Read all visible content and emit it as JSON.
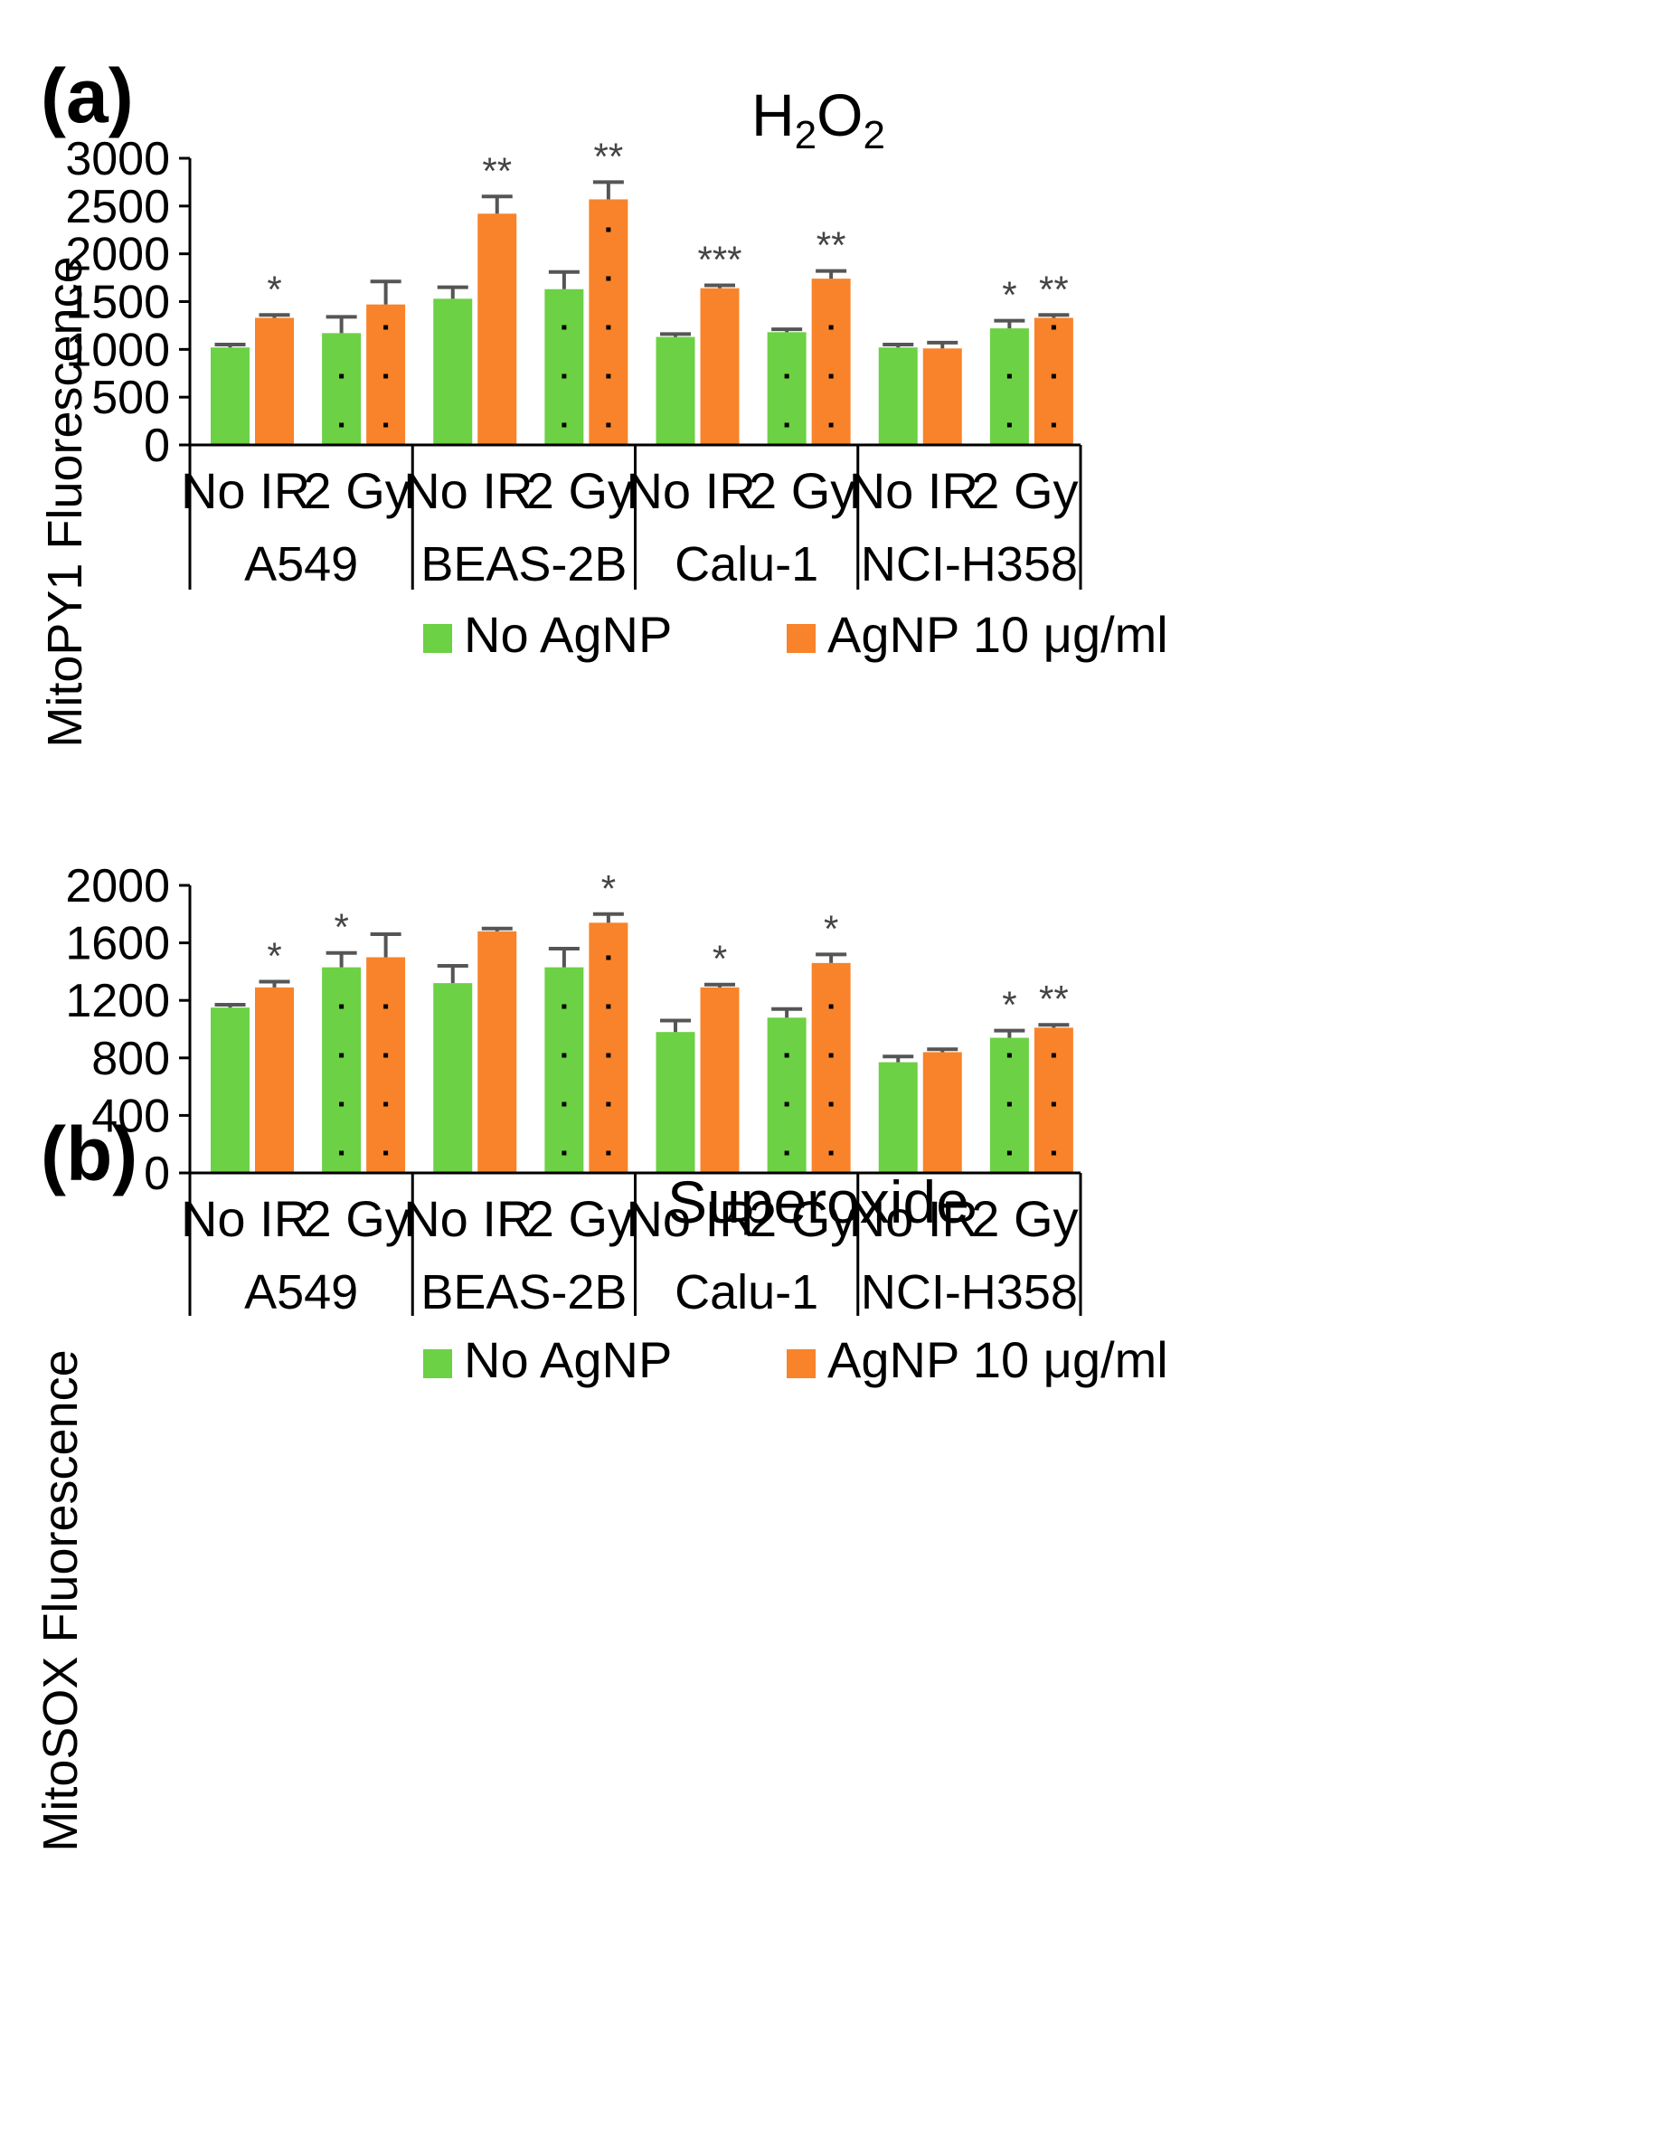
{
  "colors": {
    "no_agnp": "#6cd144",
    "agnp": "#f8832a",
    "error_bar": "#555555",
    "dots": "#000000",
    "axis": "#000000"
  },
  "chart_data": [
    {
      "type": "bar",
      "panel_label": "(a)",
      "title_main": "H",
      "title_sub1": "2",
      "title_mid": "O",
      "title_sub2": "2",
      "ylabel": "MitoPY1 Fluorescence",
      "ylim": [
        0,
        3000
      ],
      "yticks": [
        0,
        500,
        1000,
        1500,
        2000,
        2500,
        3000
      ],
      "ytick_labels": [
        "0",
        "500",
        "1000",
        "1500",
        "2000",
        "2500",
        "3000"
      ],
      "cell_lines": [
        "A549",
        "BEAS-2B",
        "Calu-1",
        "NCI-H358"
      ],
      "conditions": [
        "No IR",
        "2 Gy"
      ],
      "legend": [
        "No AgNP",
        "AgNP 10 μg/ml"
      ],
      "series": [
        {
          "name": "No AgNP",
          "values": [
            1020,
            1170,
            1530,
            1630,
            1130,
            1180,
            1020,
            1220
          ],
          "errors": [
            30,
            170,
            120,
            180,
            30,
            30,
            30,
            80
          ],
          "significance": [
            "",
            "",
            "",
            "",
            "",
            "",
            "",
            "*"
          ]
        },
        {
          "name": "AgNP 10 μg/ml",
          "values": [
            1330,
            1470,
            2420,
            2570,
            1640,
            1740,
            1010,
            1330
          ],
          "errors": [
            30,
            240,
            180,
            180,
            30,
            80,
            60,
            30
          ],
          "significance": [
            "*",
            "",
            "**",
            "**",
            "***",
            "**",
            "",
            "**"
          ]
        }
      ]
    },
    {
      "type": "bar",
      "panel_label": "(b)",
      "title_main": "Superoxide",
      "ylabel": "MitoSOX Fluorescence",
      "ylim": [
        0,
        2000
      ],
      "yticks": [
        0,
        400,
        800,
        1200,
        1600,
        2000
      ],
      "ytick_labels": [
        "0",
        "400",
        "800",
        "1200",
        "1600",
        "2000"
      ],
      "cell_lines": [
        "A549",
        "BEAS-2B",
        "Calu-1",
        "NCI-H358"
      ],
      "conditions": [
        "No IR",
        "2 Gy"
      ],
      "legend": [
        "No AgNP",
        "AgNP 10 μg/ml"
      ],
      "series": [
        {
          "name": "No AgNP",
          "values": [
            1150,
            1430,
            1320,
            1430,
            980,
            1080,
            770,
            940
          ],
          "errors": [
            20,
            100,
            120,
            130,
            80,
            60,
            40,
            50
          ],
          "significance": [
            "",
            "*",
            "",
            "",
            "",
            "",
            "",
            "*"
          ]
        },
        {
          "name": "AgNP 10 μg/ml",
          "values": [
            1290,
            1500,
            1680,
            1740,
            1290,
            1460,
            840,
            1010
          ],
          "errors": [
            40,
            160,
            20,
            60,
            20,
            60,
            20,
            20
          ],
          "significance": [
            "*",
            "",
            "",
            "*",
            "*",
            "*",
            "",
            "**"
          ]
        }
      ]
    }
  ]
}
